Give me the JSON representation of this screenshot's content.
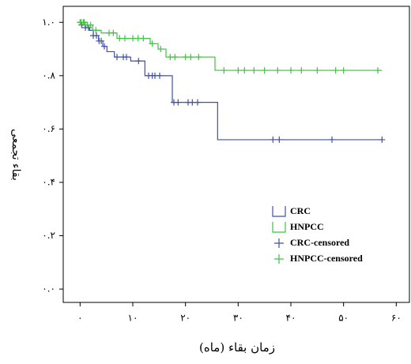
{
  "chart_data": {
    "type": "step",
    "x_label": "زمان بقاء (ماه)",
    "y_label": "بقاء تجمعی",
    "xlim": [
      -3.2,
      62.5
    ],
    "ylim": [
      -0.05,
      1.06
    ],
    "xticks": [
      {
        "value": 0,
        "label": "۰"
      },
      {
        "value": 10,
        "label": "۱۰"
      },
      {
        "value": 20,
        "label": "۲۰"
      },
      {
        "value": 30,
        "label": "۳۰"
      },
      {
        "value": 40,
        "label": "۴۰"
      },
      {
        "value": 50,
        "label": "۵۰"
      },
      {
        "value": 60,
        "label": "۶۰"
      }
    ],
    "yticks": [
      {
        "value": 0,
        "label": "۰.۰"
      },
      {
        "value": 0.2,
        "label": "۰.۲"
      },
      {
        "value": 0.4,
        "label": "۰.۴"
      },
      {
        "value": 0.6,
        "label": "۰.۶"
      },
      {
        "value": 0.8,
        "label": "۰.۸"
      },
      {
        "value": 1,
        "label": "۱.۰"
      }
    ],
    "legend": "right",
    "series": [
      {
        "name": "CRC",
        "color": "#3f51a6",
        "marker": "step",
        "x": [
          0,
          0.3,
          1.0,
          1.8,
          2.5,
          3.5,
          4.3,
          5.1,
          6.5,
          9.6,
          12.3,
          17.5,
          26.1,
          57.3
        ],
        "values": [
          1.0,
          0.99,
          0.98,
          0.97,
          0.95,
          0.93,
          0.91,
          0.89,
          0.87,
          0.855,
          0.8,
          0.7,
          0.56,
          0.56
        ]
      },
      {
        "name": "HNPCC",
        "color": "#3ec43e",
        "marker": "step",
        "x": [
          0,
          1.0,
          2.4,
          4.0,
          7.0,
          13.3,
          14.8,
          16.3,
          25.6,
          57.3
        ],
        "values": [
          1.0,
          0.99,
          0.97,
          0.96,
          0.94,
          0.92,
          0.9,
          0.87,
          0.82,
          0.82
        ]
      },
      {
        "name": "CRC-censored",
        "color": "#3f51a6",
        "marker": "plus",
        "x": [
          0.3,
          1.0,
          1.6,
          2.5,
          3.1,
          3.6,
          4.0,
          4.6,
          7.0,
          8.2,
          8.8,
          11.1,
          13.0,
          13.7,
          14.2,
          15.1,
          17.8,
          18.6,
          20.5,
          21.3,
          22.3,
          36.6,
          37.8,
          47.8,
          57.3
        ],
        "values": [
          0.99,
          0.98,
          0.98,
          0.95,
          0.95,
          0.93,
          0.93,
          0.91,
          0.87,
          0.87,
          0.87,
          0.855,
          0.8,
          0.8,
          0.8,
          0.8,
          0.7,
          0.7,
          0.7,
          0.7,
          0.7,
          0.56,
          0.56,
          0.56,
          0.56
        ]
      },
      {
        "name": "HNPCC-censored",
        "color": "#3ec43e",
        "marker": "plus",
        "x": [
          0,
          0.2,
          0.6,
          0.8,
          1.4,
          2.0,
          3.0,
          5.5,
          6.3,
          7.5,
          8.5,
          10.0,
          11.0,
          12.0,
          13.7,
          15.3,
          17.1,
          18.0,
          20.0,
          21.0,
          22.5,
          27.3,
          30.0,
          31.2,
          33.0,
          35.0,
          37.5,
          40.0,
          42.0,
          45.0,
          48.5,
          50.0,
          56.5
        ],
        "values": [
          1.0,
          1.0,
          1.0,
          1.0,
          0.99,
          0.99,
          0.97,
          0.96,
          0.96,
          0.94,
          0.94,
          0.94,
          0.94,
          0.94,
          0.92,
          0.9,
          0.87,
          0.87,
          0.87,
          0.87,
          0.87,
          0.82,
          0.82,
          0.82,
          0.82,
          0.82,
          0.82,
          0.82,
          0.82,
          0.82,
          0.82,
          0.82,
          0.82
        ]
      }
    ]
  }
}
